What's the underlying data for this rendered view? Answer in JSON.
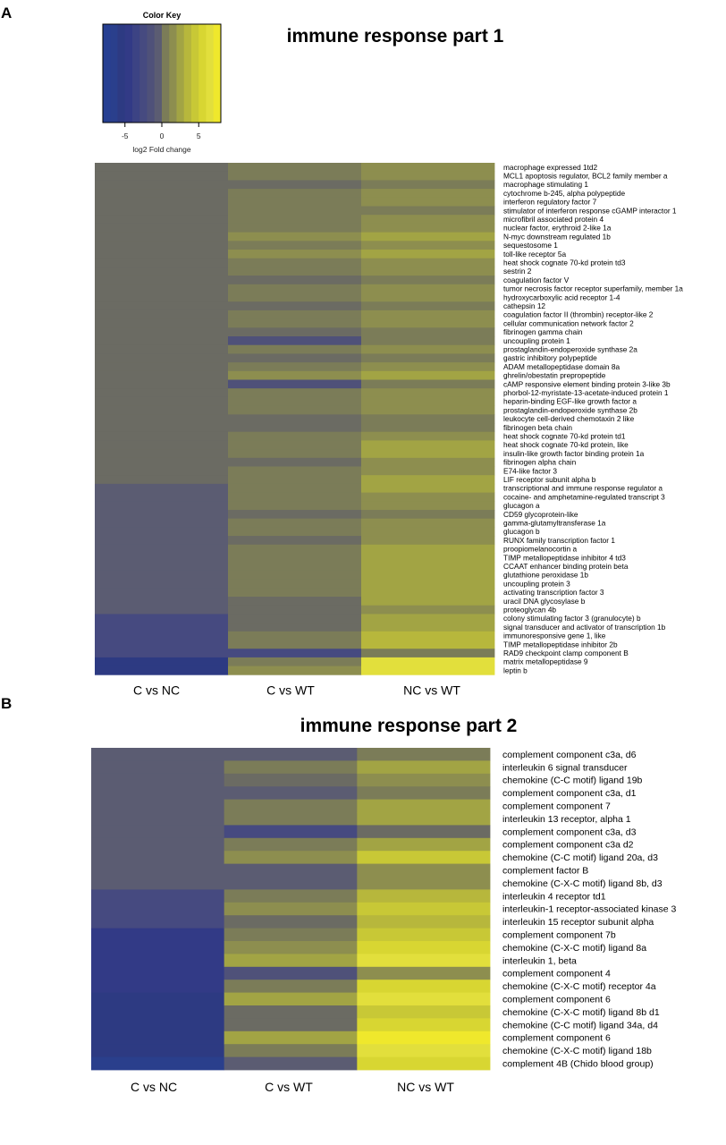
{
  "palette": {
    "-8": "#263f92",
    "-7": "#2a3f8c",
    "-6": "#2d3a82",
    "-5": "#323a86",
    "-4": "#3c4384",
    "-3": "#464a80",
    "-2": "#4f5179",
    "-1": "#5b5c72",
    "0": "#6b6b63",
    "1": "#7b7c58",
    "2": "#8d8e4f",
    "3": "#a2a444",
    "4": "#b7b73c",
    "5": "#c8c836",
    "6": "#d8d632",
    "7": "#e2df3c",
    "8": "#efe82c"
  },
  "color_key": {
    "title": "Color Key",
    "xlabel": "log2 Fold change",
    "range": [
      -8,
      8
    ],
    "ticks": [
      {
        "v": -5,
        "label": "-5"
      },
      {
        "v": 0,
        "label": "0"
      },
      {
        "v": 5,
        "label": "5"
      }
    ]
  },
  "chart_data": [
    {
      "type": "heatmap",
      "panel": "A",
      "title": "immune response part 1",
      "columns": [
        "C vs NC",
        "C vs WT",
        "NC vs WT"
      ],
      "rows": [
        "macrophage expressed 1td2",
        "MCL1 apoptosis regulator, BCL2 family member a",
        "macrophage stimulating 1",
        "cytochrome b-245, alpha polypeptide",
        "interferon regulatory factor 7",
        "stimulator of interferon response cGAMP interactor 1",
        "microfibril associated protein 4",
        "nuclear factor, erythroid 2-like 1a",
        "N-myc downstream regulated 1b",
        "sequestosome 1",
        "toll-like receptor 5a",
        "heat shock cognate 70-kd protein td3",
        "sestrin 2",
        "coagulation factor V",
        "tumor necrosis factor receptor superfamily, member 1a",
        "hydroxycarboxylic acid receptor 1-4",
        "cathepsin 12",
        "coagulation factor II (thrombin) receptor-like 2",
        "cellular communication network factor 2",
        "fibrinogen gamma chain",
        "uncoupling protein 1",
        "prostaglandin-endoperoxide synthase 2a",
        "gastric inhibitory polypeptide",
        "ADAM metallopeptidase domain 8a",
        "ghrelin/obestatin prepropeptide",
        "cAMP responsive element binding protein 3-like 3b",
        "phorbol-12-myristate-13-acetate-induced protein 1",
        "heparin-binding EGF-like growth factor a",
        "prostaglandin-endoperoxide synthase 2b",
        "leukocyte cell-derived chemotaxin 2 like",
        "fibrinogen beta chain",
        "heat shock cognate 70-kd protein td1",
        "heat shock cognate 70-kd protein, like",
        "insulin-like growth factor binding protein 1a",
        "fibrinogen alpha chain",
        "E74-like factor 3",
        "LIF receptor subunit alpha b",
        "transcriptional and immune response regulator a",
        "cocaine- and amphetamine-regulated transcript 3",
        "glucagon a",
        "CD59 glycoprotein-like",
        "gamma-glutamyltransferase 1a",
        "glucagon b",
        "RUNX family transcription factor 1",
        "proopiomelanocortin a",
        "TIMP metallopeptidase inhibitor 4 td3",
        "CCAAT enhancer binding protein beta",
        "glutathione peroxidase 1b",
        "uncoupling protein 3",
        "activating transcription factor 3",
        "uracil DNA glycosylase b",
        "proteoglycan 4b",
        "colony stimulating factor 3 (granulocyte) b",
        "signal transducer and activator of transcription 1b",
        "immunoresponsive gene 1, like",
        "TIMP metallopeptidase inhibitor 2b",
        "RAD9 checkpoint clamp component B",
        "matrix metallopeptidase 9",
        "leptin b"
      ],
      "series": [
        {
          "name": "C vs NC",
          "values": [
            0,
            0,
            0,
            0,
            0,
            0,
            0,
            0,
            0,
            0,
            0,
            0,
            0,
            0,
            0,
            0,
            0,
            0,
            0,
            0,
            0,
            0,
            0,
            0,
            0,
            0,
            0,
            0,
            0,
            0,
            0,
            0,
            0,
            0,
            0,
            0,
            0,
            -1,
            -1,
            -1,
            -1,
            -1,
            -1,
            -1,
            -1,
            -1,
            -1,
            -1,
            -1,
            -1,
            -1,
            -1,
            -3,
            -3,
            -3,
            -3,
            -3,
            -6,
            -6
          ]
        },
        {
          "name": "C vs WT",
          "values": [
            1,
            1,
            0,
            1,
            1,
            1,
            1,
            1,
            2,
            1,
            2,
            1,
            1,
            0,
            1,
            1,
            0,
            1,
            1,
            0,
            -2,
            1,
            0,
            1,
            2,
            -2,
            1,
            1,
            1,
            0,
            0,
            1,
            1,
            1,
            0,
            1,
            1,
            1,
            1,
            1,
            0,
            1,
            1,
            0,
            1,
            1,
            1,
            1,
            1,
            1,
            0,
            0,
            0,
            0,
            1,
            1,
            -3,
            1,
            2
          ]
        },
        {
          "name": "NC vs WT",
          "values": [
            2,
            2,
            1,
            2,
            2,
            1,
            2,
            2,
            3,
            2,
            3,
            2,
            2,
            1,
            2,
            2,
            1,
            2,
            2,
            1,
            1,
            2,
            1,
            2,
            3,
            1,
            2,
            2,
            2,
            1,
            1,
            2,
            3,
            3,
            2,
            2,
            3,
            3,
            2,
            2,
            1,
            2,
            2,
            2,
            3,
            3,
            3,
            3,
            3,
            3,
            3,
            2,
            3,
            3,
            4,
            4,
            1,
            7,
            7
          ]
        }
      ]
    },
    {
      "type": "heatmap",
      "panel": "B",
      "title": "immune response part 2",
      "columns": [
        "C vs NC",
        "C vs WT",
        "NC vs WT"
      ],
      "rows": [
        "complement component c3a, d6",
        "interleukin 6 signal transducer",
        "chemokine (C-C motif) ligand 19b",
        "complement component c3a, d1",
        "complement component 7",
        "interleukin 13 receptor, alpha 1",
        "complement component c3a, d3",
        "complement component c3a d2",
        "chemokine (C-C motif) ligand 20a, d3",
        "complement factor B",
        "chemokine (C-X-C motif) ligand 8b, d3",
        "interleukin 4 receptor td1",
        "interleukin-1 receptor-associated kinase 3",
        "interleukin 15 receptor subunit alpha",
        "complement component 7b",
        "chemokine (C-X-C motif) ligand 8a",
        "interleukin 1, beta",
        "complement component 4",
        "chemokine (C-X-C motif) receptor 4a",
        "complement component 6",
        "chemokine (C-X-C motif) ligand 8b d1",
        "chemokine (C-C motif) ligand 34a, d4",
        "complement component 6",
        "chemokine (C-X-C motif) ligand 18b",
        "complement 4B (Chido blood group)"
      ],
      "series": [
        {
          "name": "C vs NC",
          "values": [
            -1,
            -1,
            -1,
            -1,
            -1,
            -1,
            -1,
            -1,
            -1,
            -1,
            -1,
            -3,
            -3,
            -3,
            -5,
            -5,
            -5,
            -5,
            -5,
            -6,
            -6,
            -6,
            -6,
            -6,
            -7
          ]
        },
        {
          "name": "C vs WT",
          "values": [
            -1,
            1,
            0,
            -1,
            1,
            1,
            -3,
            1,
            2,
            -1,
            -1,
            1,
            2,
            0,
            1,
            2,
            3,
            -2,
            1,
            3,
            0,
            0,
            3,
            1,
            -1
          ]
        },
        {
          "name": "NC vs WT",
          "values": [
            1,
            3,
            2,
            1,
            3,
            3,
            0,
            3,
            5,
            2,
            2,
            4,
            5,
            4,
            5,
            6,
            7,
            2,
            6,
            7,
            5,
            6,
            8,
            7,
            6
          ]
        }
      ]
    }
  ]
}
